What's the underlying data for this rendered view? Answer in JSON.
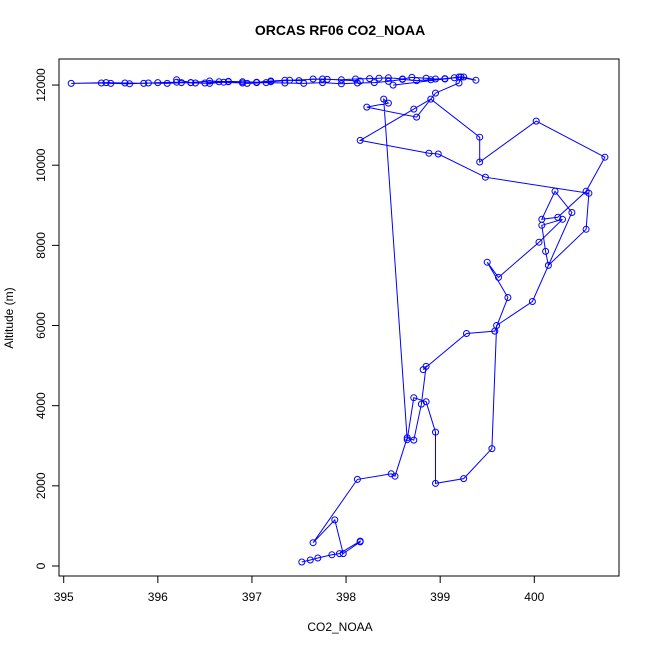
{
  "chart_data": {
    "type": "line",
    "title": "ORCAS RF06 CO2_NOAA",
    "xlabel": "CO2_NOAA",
    "ylabel": "Altitude (m)",
    "xlim": [
      394.95,
      400.9
    ],
    "ylim": [
      -250,
      12650
    ],
    "xticks": [
      395,
      396,
      397,
      398,
      399,
      400
    ],
    "yticks": [
      0,
      2000,
      4000,
      6000,
      8000,
      10000,
      12000
    ],
    "grid": false,
    "legend": "none",
    "marker": "open-circle",
    "color": "#0000ff",
    "series": [
      {
        "x": [
          397.53,
          397.62,
          397.7,
          397.85,
          397.93,
          398.15,
          398.15,
          397.97,
          397.88,
          397.65,
          398.12,
          398.48,
          398.52,
          398.65,
          398.72,
          398.8,
          398.85,
          398.82,
          399.28,
          399.58,
          399.72,
          399.5,
          399.62,
          400.05,
          400.3,
          400.08,
          400.12,
          400.15,
          400.55,
          400.58,
          399.48,
          398.98,
          398.88,
          398.15,
          398.72,
          398.9,
          399.42,
          399.42,
          400.02,
          400.75,
          400.55,
          400.25,
          400.08,
          400.22,
          400.4,
          399.98,
          399.6,
          399.55,
          399.25,
          398.95,
          398.95,
          398.85,
          398.72,
          398.65,
          398.4,
          398.45,
          398.22,
          398.75,
          398.95,
          399.2,
          399.22,
          398.5
        ],
        "y": [
          100,
          150,
          200,
          280,
          310,
          620,
          600,
          310,
          1150,
          580,
          2160,
          2300,
          2240,
          3200,
          3140,
          4040,
          4980,
          4900,
          5800,
          5860,
          6700,
          7580,
          7200,
          8080,
          8650,
          8500,
          7850,
          7500,
          8400,
          9300,
          9700,
          10280,
          10300,
          10620,
          11400,
          11650,
          10700,
          10080,
          11100,
          10200,
          9350,
          8700,
          8650,
          9350,
          8820,
          6600,
          6000,
          2930,
          2180,
          2060,
          3340,
          4100,
          4200,
          3150,
          11650,
          11550,
          11450,
          11200,
          11800,
          12050,
          12200,
          12000
        ]
      },
      {
        "x": [
          398.15,
          397.75,
          397.4,
          397.2,
          397.05,
          396.9,
          396.7,
          396.55,
          396.4,
          396.25,
          396.1,
          395.9,
          395.7,
          395.5,
          395.4,
          395.08,
          395.45,
          395.65,
          395.85,
          396.0,
          396.2,
          396.35,
          396.5,
          396.65,
          396.75,
          396.9,
          397.05,
          397.2,
          397.35,
          397.5,
          397.65,
          397.8,
          397.95,
          398.1,
          398.25,
          398.35,
          398.45,
          398.6,
          398.7,
          398.85,
          398.95,
          399.05,
          399.15,
          399.25,
          399.38,
          399.2,
          399.05,
          398.9,
          398.75,
          398.6,
          398.45,
          398.3,
          398.12,
          397.95,
          397.75,
          397.55,
          397.35,
          397.15,
          396.95,
          396.75,
          396.55,
          396.35,
          396.2
        ],
        "y": [
          12100,
          12150,
          12120,
          12080,
          12060,
          12050,
          12070,
          12040,
          12050,
          12060,
          12040,
          12050,
          12030,
          12040,
          12050,
          12040,
          12060,
          12050,
          12040,
          12060,
          12070,
          12060,
          12050,
          12080,
          12090,
          12080,
          12070,
          12100,
          12120,
          12110,
          12150,
          12140,
          12130,
          12150,
          12160,
          12170,
          12180,
          12150,
          12190,
          12170,
          12150,
          12160,
          12180,
          12200,
          12120,
          12200,
          12150,
          12130,
          12110,
          12140,
          12090,
          12060,
          12050,
          12030,
          12060,
          12040,
          12050,
          12060,
          12040,
          12080,
          12100,
          12060,
          12130
        ]
      }
    ]
  }
}
